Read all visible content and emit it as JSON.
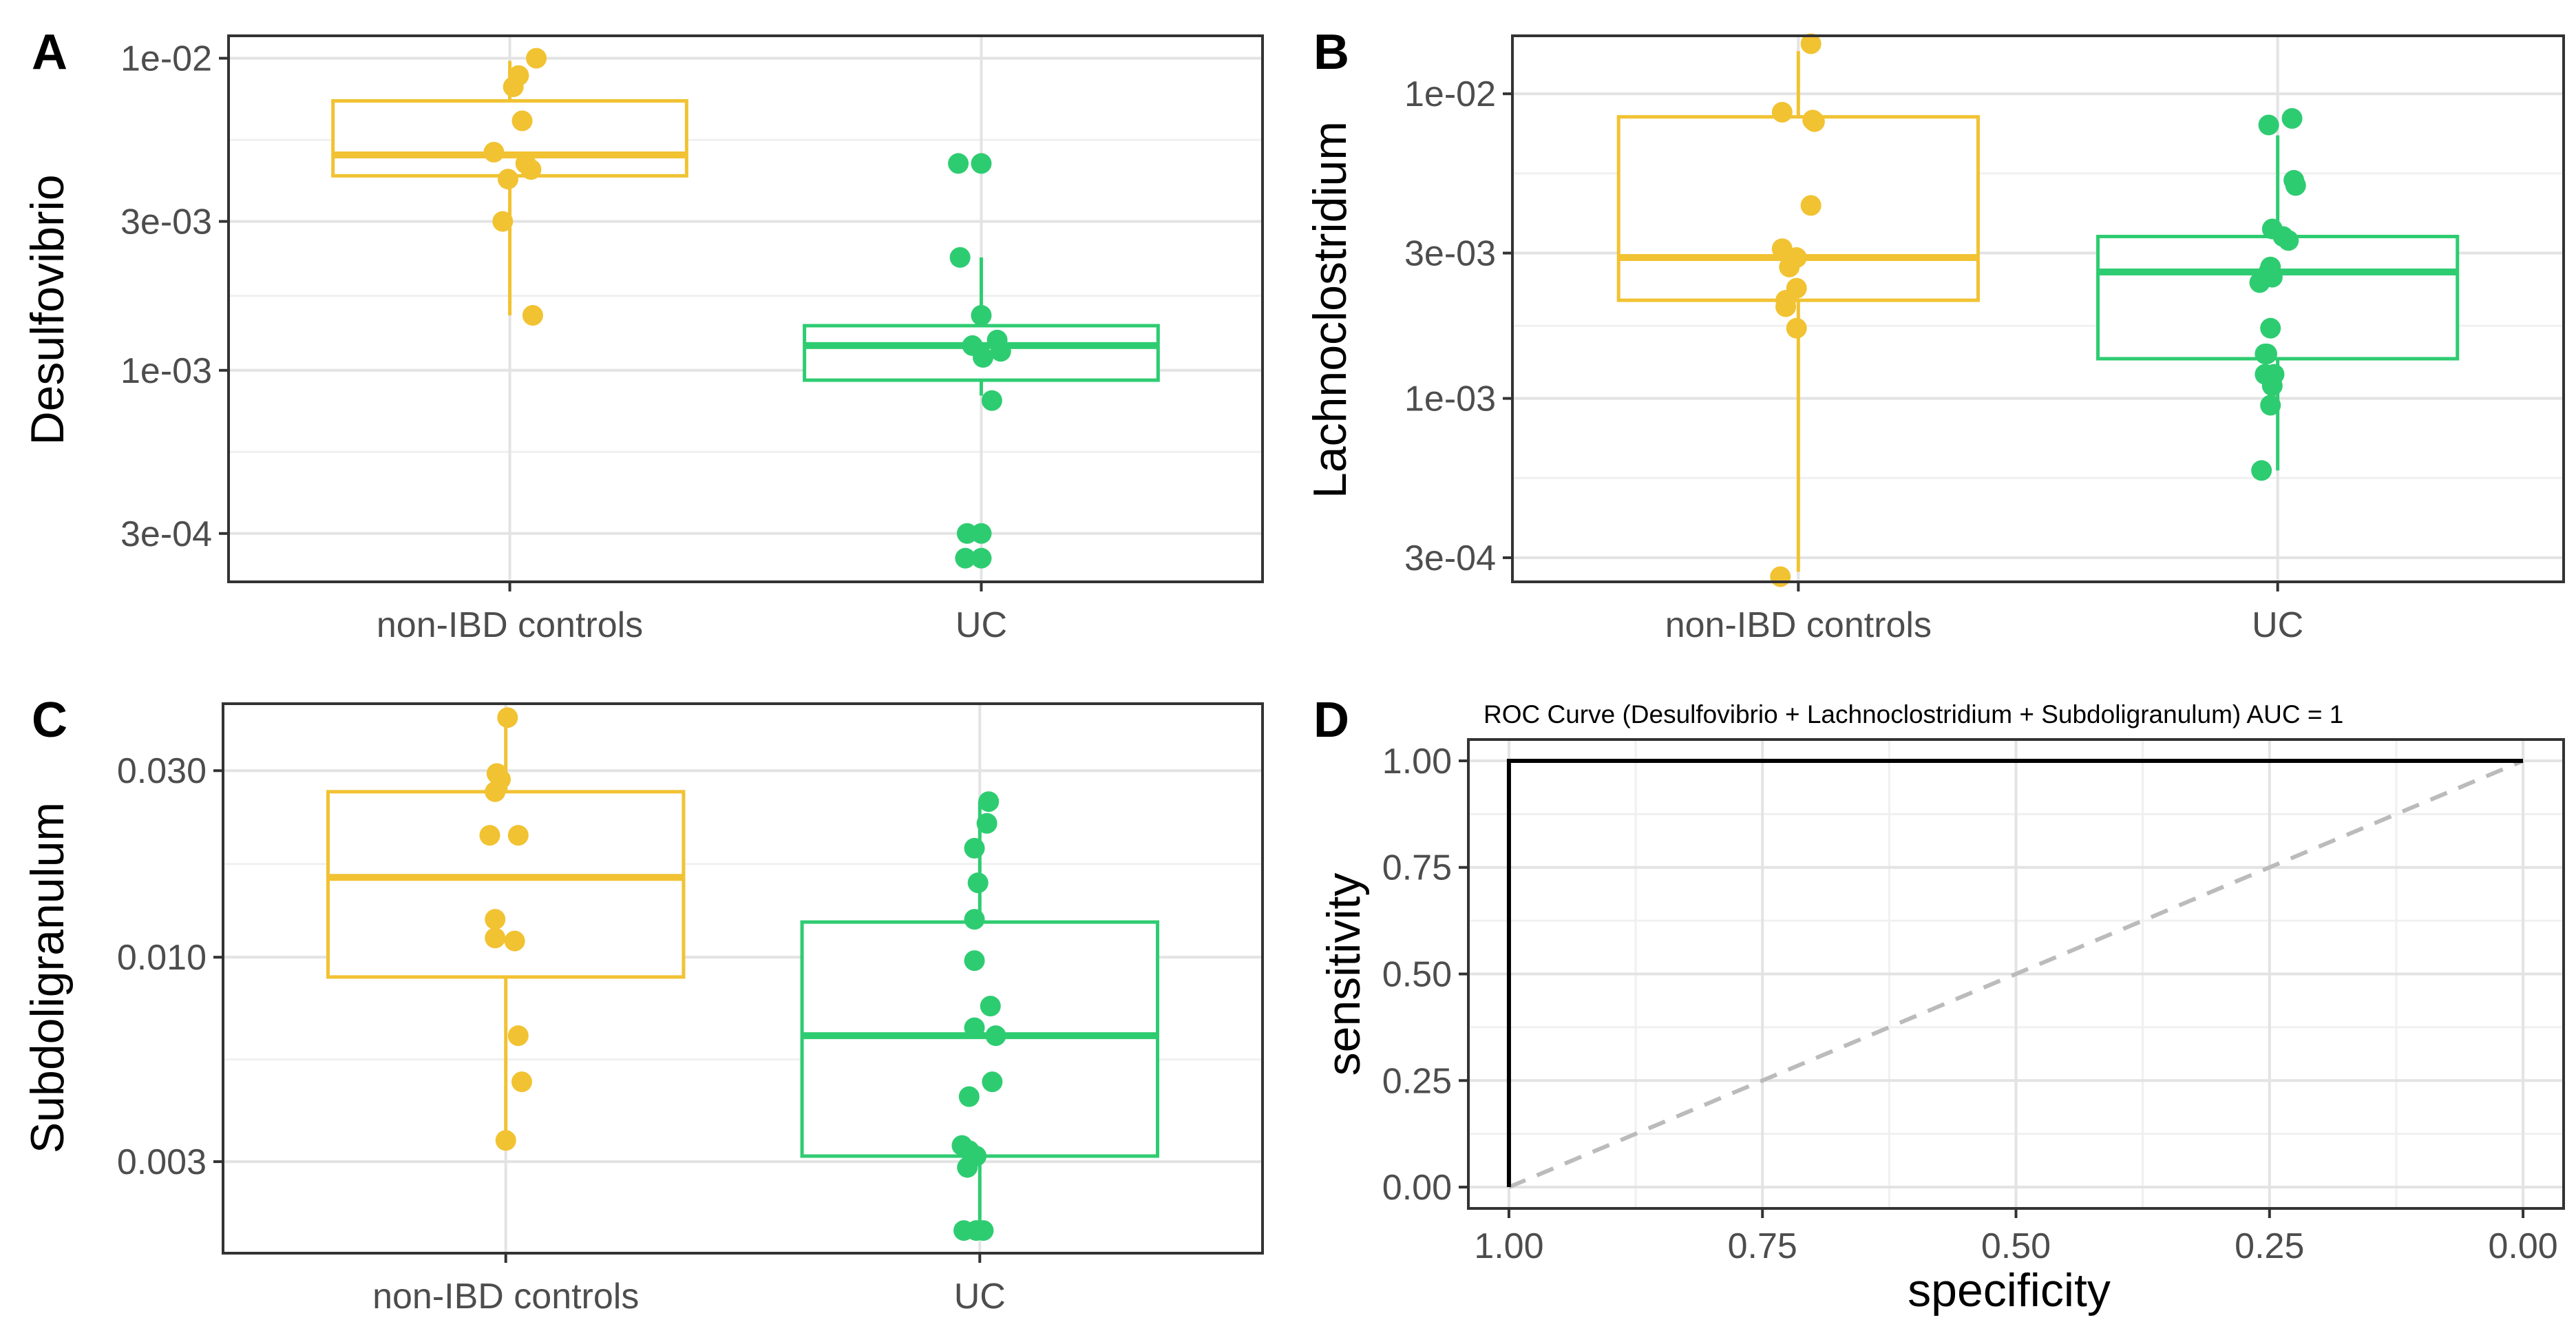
{
  "chart_data": [
    {
      "panel_label": "A",
      "type": "boxplot",
      "scale": "log10",
      "xlabel": "",
      "ylabel": "Desulfovibrio",
      "categories": [
        "non-IBD controls",
        "UC"
      ],
      "yticks": [
        {
          "value": 0.0003,
          "label": "3e-04"
        },
        {
          "value": 0.001,
          "label": "1e-03"
        },
        {
          "value": 0.003,
          "label": "3e-03"
        },
        {
          "value": 0.01,
          "label": "1e-02"
        }
      ],
      "ylim": [
        0.00021,
        0.0118
      ],
      "groups": [
        {
          "name": "non-IBD controls",
          "color": "#f1c232",
          "box": {
            "q1": 0.0042,
            "median": 0.0049,
            "q3": 0.0073,
            "whisker_low": 0.0015,
            "whisker_high": 0.0098
          },
          "points": [
            {
              "jitter": 0.15,
              "value": 0.01
            },
            {
              "jitter": 0.05,
              "value": 0.0088
            },
            {
              "jitter": 0.02,
              "value": 0.0081
            },
            {
              "jitter": 0.07,
              "value": 0.0063
            },
            {
              "jitter": -0.09,
              "value": 0.005
            },
            {
              "jitter": 0.12,
              "value": 0.0044
            },
            {
              "jitter": 0.09,
              "value": 0.0046
            },
            {
              "jitter": -0.01,
              "value": 0.0041
            },
            {
              "jitter": -0.04,
              "value": 0.003
            },
            {
              "jitter": 0.13,
              "value": 0.0015
            }
          ]
        },
        {
          "name": "UC",
          "color": "#2ecc71",
          "box": {
            "q1": 0.00093,
            "median": 0.0012,
            "q3": 0.00139,
            "whisker_low": 0.00083,
            "whisker_high": 0.0023
          },
          "points": [
            {
              "jitter": -0.13,
              "value": 0.0046
            },
            {
              "jitter": 0.0,
              "value": 0.0046
            },
            {
              "jitter": -0.12,
              "value": 0.0023
            },
            {
              "jitter": 0.0,
              "value": 0.0015
            },
            {
              "jitter": 0.09,
              "value": 0.00125
            },
            {
              "jitter": -0.05,
              "value": 0.0012
            },
            {
              "jitter": 0.11,
              "value": 0.00115
            },
            {
              "jitter": 0.01,
              "value": 0.0011
            },
            {
              "jitter": 0.06,
              "value": 0.0008
            },
            {
              "jitter": -0.08,
              "value": 0.0003
            },
            {
              "jitter": 0.0,
              "value": 0.0003
            },
            {
              "jitter": -0.09,
              "value": 0.00025
            },
            {
              "jitter": 0.0,
              "value": 0.00025
            }
          ]
        }
      ]
    },
    {
      "panel_label": "B",
      "type": "boxplot",
      "scale": "log10",
      "xlabel": "",
      "ylabel": "Lachnoclostridium",
      "categories": [
        "non-IBD controls",
        "UC"
      ],
      "yticks": [
        {
          "value": 0.0003,
          "label": "3e-04"
        },
        {
          "value": 0.001,
          "label": "1e-03"
        },
        {
          "value": 0.003,
          "label": "3e-03"
        },
        {
          "value": 0.01,
          "label": "1e-02"
        }
      ],
      "ylim": [
        0.00025,
        0.0155
      ],
      "groups": [
        {
          "name": "non-IBD controls",
          "color": "#f1c232",
          "box": {
            "q1": 0.0021,
            "median": 0.0029,
            "q3": 0.0084,
            "whisker_low": 0.00027,
            "whisker_high": 0.0138
          },
          "points": [
            {
              "jitter": 0.07,
              "value": 0.0146
            },
            {
              "jitter": -0.09,
              "value": 0.0087
            },
            {
              "jitter": 0.09,
              "value": 0.0081
            },
            {
              "jitter": 0.08,
              "value": 0.0082
            },
            {
              "jitter": 0.07,
              "value": 0.0043
            },
            {
              "jitter": -0.09,
              "value": 0.0031
            },
            {
              "jitter": -0.01,
              "value": 0.0029
            },
            {
              "jitter": -0.05,
              "value": 0.0027
            },
            {
              "jitter": -0.01,
              "value": 0.0023
            },
            {
              "jitter": -0.07,
              "value": 0.0021
            },
            {
              "jitter": -0.07,
              "value": 0.002
            },
            {
              "jitter": -0.01,
              "value": 0.0017
            },
            {
              "jitter": -0.1,
              "value": 0.00026
            }
          ]
        },
        {
          "name": "UC",
          "color": "#2ecc71",
          "box": {
            "q1": 0.00135,
            "median": 0.0026,
            "q3": 0.0034,
            "whisker_low": 0.00058,
            "whisker_high": 0.0073
          },
          "points": [
            {
              "jitter": 0.08,
              "value": 0.0083
            },
            {
              "jitter": -0.05,
              "value": 0.0079
            },
            {
              "jitter": 0.09,
              "value": 0.0052
            },
            {
              "jitter": 0.1,
              "value": 0.005
            },
            {
              "jitter": -0.03,
              "value": 0.0036
            },
            {
              "jitter": 0.03,
              "value": 0.0034
            },
            {
              "jitter": 0.06,
              "value": 0.0033
            },
            {
              "jitter": -0.04,
              "value": 0.0027
            },
            {
              "jitter": -0.05,
              "value": 0.0026
            },
            {
              "jitter": -0.03,
              "value": 0.0025
            },
            {
              "jitter": -0.1,
              "value": 0.0024
            },
            {
              "jitter": -0.04,
              "value": 0.0017
            },
            {
              "jitter": -0.07,
              "value": 0.0014
            },
            {
              "jitter": -0.06,
              "value": 0.0014
            },
            {
              "jitter": -0.02,
              "value": 0.0012
            },
            {
              "jitter": -0.07,
              "value": 0.0012
            },
            {
              "jitter": -0.03,
              "value": 0.0011
            },
            {
              "jitter": -0.04,
              "value": 0.00095
            },
            {
              "jitter": -0.09,
              "value": 0.00058
            }
          ]
        }
      ]
    },
    {
      "panel_label": "C",
      "type": "boxplot",
      "scale": "log10",
      "xlabel": "",
      "ylabel": "Subdoligranulum",
      "categories": [
        "non-IBD controls",
        "UC"
      ],
      "yticks": [
        {
          "value": 0.003,
          "label": "0.003"
        },
        {
          "value": 0.01,
          "label": "0.010"
        },
        {
          "value": 0.03,
          "label": "0.030"
        }
      ],
      "ylim": [
        0.00175,
        0.0445
      ],
      "groups": [
        {
          "name": "non-IBD controls",
          "color": "#f1c232",
          "box": {
            "q1": 0.0089,
            "median": 0.016,
            "q3": 0.0265,
            "whisker_low": 0.0034,
            "whisker_high": 0.041
          },
          "points": [
            {
              "jitter": 0.01,
              "value": 0.041
            },
            {
              "jitter": -0.05,
              "value": 0.0295
            },
            {
              "jitter": -0.03,
              "value": 0.0285
            },
            {
              "jitter": -0.06,
              "value": 0.0265
            },
            {
              "jitter": -0.09,
              "value": 0.0205
            },
            {
              "jitter": 0.07,
              "value": 0.0205
            },
            {
              "jitter": -0.06,
              "value": 0.0125
            },
            {
              "jitter": -0.06,
              "value": 0.0112
            },
            {
              "jitter": 0.05,
              "value": 0.011
            },
            {
              "jitter": 0.07,
              "value": 0.0063
            },
            {
              "jitter": 0.09,
              "value": 0.0048
            },
            {
              "jitter": 0.0,
              "value": 0.0034
            }
          ]
        },
        {
          "name": "UC",
          "color": "#2ecc71",
          "box": {
            "q1": 0.0031,
            "median": 0.0063,
            "q3": 0.0123,
            "whisker_low": 0.00195,
            "whisker_high": 0.025
          },
          "points": [
            {
              "jitter": 0.05,
              "value": 0.025
            },
            {
              "jitter": 0.04,
              "value": 0.022
            },
            {
              "jitter": -0.03,
              "value": 0.019
            },
            {
              "jitter": -0.01,
              "value": 0.0155
            },
            {
              "jitter": -0.03,
              "value": 0.0125
            },
            {
              "jitter": -0.03,
              "value": 0.0098
            },
            {
              "jitter": 0.06,
              "value": 0.0075
            },
            {
              "jitter": -0.03,
              "value": 0.0066
            },
            {
              "jitter": 0.09,
              "value": 0.0063
            },
            {
              "jitter": 0.07,
              "value": 0.0048
            },
            {
              "jitter": -0.06,
              "value": 0.0044
            },
            {
              "jitter": -0.1,
              "value": 0.0033
            },
            {
              "jitter": -0.06,
              "value": 0.0032
            },
            {
              "jitter": -0.02,
              "value": 0.0031
            },
            {
              "jitter": -0.07,
              "value": 0.0029
            },
            {
              "jitter": -0.09,
              "value": 0.002
            },
            {
              "jitter": -0.02,
              "value": 0.002
            },
            {
              "jitter": 0.02,
              "value": 0.002
            }
          ]
        }
      ]
    },
    {
      "panel_label": "D",
      "type": "line",
      "title": "ROC Curve    (Desulfovibrio + Lachnoclostridium + Subdoligranulum)    AUC = 1",
      "xlabel": "specificity",
      "ylabel": "sensitivity",
      "xlim": [
        1.04,
        -0.04
      ],
      "ylim": [
        -0.05,
        1.05
      ],
      "xticks": [
        {
          "value": 1.0,
          "label": "1.00"
        },
        {
          "value": 0.75,
          "label": "0.75"
        },
        {
          "value": 0.5,
          "label": "0.50"
        },
        {
          "value": 0.25,
          "label": "0.25"
        },
        {
          "value": 0.0,
          "label": "0.00"
        }
      ],
      "yticks": [
        {
          "value": 0.0,
          "label": "0.00"
        },
        {
          "value": 0.25,
          "label": "0.25"
        },
        {
          "value": 0.5,
          "label": "0.50"
        },
        {
          "value": 0.75,
          "label": "0.75"
        },
        {
          "value": 1.0,
          "label": "1.00"
        }
      ],
      "series": [
        {
          "name": "roc",
          "color": "#000000",
          "dashed": false,
          "points": [
            [
              1,
              0
            ],
            [
              1,
              1
            ],
            [
              0,
              1
            ]
          ]
        },
        {
          "name": "chance",
          "color": "#bbbbbb",
          "dashed": true,
          "points": [
            [
              1,
              0
            ],
            [
              0,
              1
            ]
          ]
        }
      ]
    }
  ]
}
